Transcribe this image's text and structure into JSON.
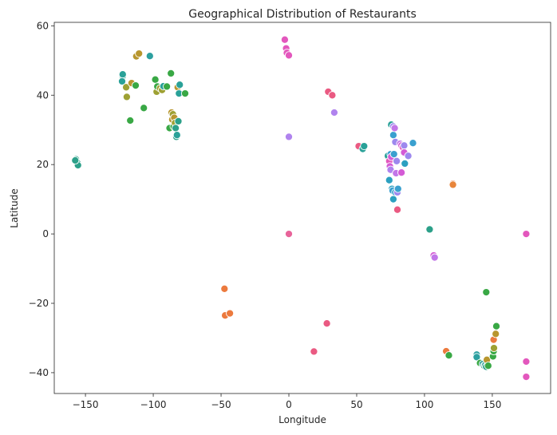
{
  "chart_data": {
    "type": "scatter",
    "title": "Geographical Distribution of Restaurants",
    "xlabel": "Longitude",
    "ylabel": "Latitude",
    "xlim": [
      -173,
      193
    ],
    "ylim": [
      -46,
      61
    ],
    "xticks": [
      -150,
      -100,
      -50,
      0,
      50,
      100,
      150
    ],
    "yticks": [
      -40,
      -20,
      0,
      20,
      40,
      60
    ],
    "xtick_labels": [
      "−150",
      "−100",
      "−50",
      "0",
      "50",
      "100",
      "150"
    ],
    "ytick_labels": [
      "−40",
      "−20",
      "0",
      "20",
      "40",
      "60"
    ],
    "grid": false,
    "legend": "none",
    "marker_edge_color": "#ffffff",
    "points": [
      {
        "x": -157,
        "y": 21.5,
        "color": "#2ca089"
      },
      {
        "x": -156,
        "y": 20.5,
        "color": "#2ca089"
      },
      {
        "x": -155.5,
        "y": 19.8,
        "color": "#2ca089"
      },
      {
        "x": -157.5,
        "y": 21.2,
        "color": "#2ca089"
      },
      {
        "x": -122.5,
        "y": 45.5,
        "color": "#2ca089"
      },
      {
        "x": -122.5,
        "y": 46,
        "color": "#2aa198"
      },
      {
        "x": -123,
        "y": 44,
        "color": "#2aa198"
      },
      {
        "x": -120,
        "y": 42.3,
        "color": "#9ea133"
      },
      {
        "x": -119.5,
        "y": 39.5,
        "color": "#9ea133"
      },
      {
        "x": -117,
        "y": 32.7,
        "color": "#39a845"
      },
      {
        "x": -116,
        "y": 43.5,
        "color": "#b8962e"
      },
      {
        "x": -113,
        "y": 42.8,
        "color": "#39a845"
      },
      {
        "x": -112.5,
        "y": 51.2,
        "color": "#b8962e"
      },
      {
        "x": -110.5,
        "y": 52,
        "color": "#b8962e"
      },
      {
        "x": -107,
        "y": 36.3,
        "color": "#39a845"
      },
      {
        "x": -102.5,
        "y": 51.3,
        "color": "#2ca0a0"
      },
      {
        "x": -98.5,
        "y": 44.5,
        "color": "#39a845"
      },
      {
        "x": -97.5,
        "y": 41,
        "color": "#9ea133"
      },
      {
        "x": -97,
        "y": 42.5,
        "color": "#39a845"
      },
      {
        "x": -95,
        "y": 42,
        "color": "#9ea133"
      },
      {
        "x": -93.5,
        "y": 41.5,
        "color": "#9ea133"
      },
      {
        "x": -92.5,
        "y": 42.6,
        "color": "#2aa198"
      },
      {
        "x": -90,
        "y": 42.5,
        "color": "#39a845"
      },
      {
        "x": -88,
        "y": 30.5,
        "color": "#39a845"
      },
      {
        "x": -87,
        "y": 46.3,
        "color": "#39a845"
      },
      {
        "x": -86.5,
        "y": 35,
        "color": "#b8962e"
      },
      {
        "x": -86,
        "y": 33,
        "color": "#b8962e"
      },
      {
        "x": -85.5,
        "y": 34.5,
        "color": "#9ea133"
      },
      {
        "x": -85,
        "y": 31,
        "color": "#39a845"
      },
      {
        "x": -84.5,
        "y": 33.5,
        "color": "#b8962e"
      },
      {
        "x": -84,
        "y": 32,
        "color": "#9ea133"
      },
      {
        "x": -83.5,
        "y": 30.5,
        "color": "#2ca089"
      },
      {
        "x": -83,
        "y": 28,
        "color": "#2ca089"
      },
      {
        "x": -82.5,
        "y": 28.5,
        "color": "#2aa198"
      },
      {
        "x": -82,
        "y": 42.3,
        "color": "#b8962e"
      },
      {
        "x": -81.5,
        "y": 32.5,
        "color": "#2ca089"
      },
      {
        "x": -81,
        "y": 40.5,
        "color": "#2aa198"
      },
      {
        "x": -80.5,
        "y": 43,
        "color": "#2aa198"
      },
      {
        "x": -76.5,
        "y": 40.5,
        "color": "#39a845"
      },
      {
        "x": -3,
        "y": 56,
        "color": "#e357bd"
      },
      {
        "x": -2,
        "y": 53.5,
        "color": "#e357bd"
      },
      {
        "x": -1.5,
        "y": 52.2,
        "color": "#e357bd"
      },
      {
        "x": 0,
        "y": 51.5,
        "color": "#e357bd"
      },
      {
        "x": 0,
        "y": 28,
        "color": "#b083ee"
      },
      {
        "x": 0,
        "y": 0,
        "color": "#e8649a"
      },
      {
        "x": 29,
        "y": 41,
        "color": "#ea5a82"
      },
      {
        "x": 32,
        "y": 40,
        "color": "#ea5a82"
      },
      {
        "x": 33.5,
        "y": 35,
        "color": "#b083ee"
      },
      {
        "x": 51.5,
        "y": 25.3,
        "color": "#ea5a82"
      },
      {
        "x": 54.5,
        "y": 24.5,
        "color": "#2aa198"
      },
      {
        "x": 55.5,
        "y": 25.3,
        "color": "#2aa198"
      },
      {
        "x": 73,
        "y": 22.5,
        "color": "#2aa198"
      },
      {
        "x": 74,
        "y": 15.5,
        "color": "#2ca0c0"
      },
      {
        "x": 74,
        "y": 21,
        "color": "#e357bd"
      },
      {
        "x": 74.5,
        "y": 19.5,
        "color": "#d45bd6"
      },
      {
        "x": 75,
        "y": 23,
        "color": "#3aa0cf"
      },
      {
        "x": 75,
        "y": 18.5,
        "color": "#b083ee"
      },
      {
        "x": 75.5,
        "y": 22.2,
        "color": "#d45bd6"
      },
      {
        "x": 75.5,
        "y": 31.5,
        "color": "#2aa198"
      },
      {
        "x": 76,
        "y": 13,
        "color": "#2ca0c0"
      },
      {
        "x": 76.5,
        "y": 12.5,
        "color": "#3aa0cf"
      },
      {
        "x": 77,
        "y": 28.5,
        "color": "#3aa0cf"
      },
      {
        "x": 77,
        "y": 10,
        "color": "#2ca0c0"
      },
      {
        "x": 77,
        "y": 31,
        "color": "#9d88ee"
      },
      {
        "x": 77.5,
        "y": 23,
        "color": "#3aa0cf"
      },
      {
        "x": 78,
        "y": 30.5,
        "color": "#c276e8"
      },
      {
        "x": 78.5,
        "y": 26.5,
        "color": "#9d88ee"
      },
      {
        "x": 78.5,
        "y": 12,
        "color": "#3aa0cf"
      },
      {
        "x": 79,
        "y": 17.5,
        "color": "#c276e8"
      },
      {
        "x": 79.5,
        "y": 21,
        "color": "#9d88ee"
      },
      {
        "x": 80,
        "y": 12,
        "color": "#9d88ee"
      },
      {
        "x": 80,
        "y": 7,
        "color": "#ea5a82"
      },
      {
        "x": 80.5,
        "y": 13,
        "color": "#3aa0cf"
      },
      {
        "x": 82,
        "y": 26,
        "color": "#c276e8"
      },
      {
        "x": 83,
        "y": 25.5,
        "color": "#d45bd6"
      },
      {
        "x": 83,
        "y": 17.7,
        "color": "#d45bd6"
      },
      {
        "x": 84,
        "y": 25,
        "color": "#e357bd"
      },
      {
        "x": 85,
        "y": 25.5,
        "color": "#9d88ee"
      },
      {
        "x": 85,
        "y": 23.5,
        "color": "#d45bd6"
      },
      {
        "x": 85.5,
        "y": 20.3,
        "color": "#2ca0c0"
      },
      {
        "x": 88,
        "y": 22.5,
        "color": "#9d88ee"
      },
      {
        "x": 91.5,
        "y": 26.2,
        "color": "#3aa0cf"
      },
      {
        "x": 103.8,
        "y": 1.3,
        "color": "#2ca089"
      },
      {
        "x": 106.8,
        "y": -6.2,
        "color": "#d45bd6"
      },
      {
        "x": 107.5,
        "y": -6.8,
        "color": "#c276e8"
      },
      {
        "x": 121,
        "y": 14.5,
        "color": "#ec7a3e"
      },
      {
        "x": 121,
        "y": 14.2,
        "color": "#e8853b"
      },
      {
        "x": 145.5,
        "y": -16.8,
        "color": "#39a845"
      },
      {
        "x": 175,
        "y": 0,
        "color": "#e357bd"
      },
      {
        "x": 175,
        "y": -36.8,
        "color": "#e357bd"
      },
      {
        "x": 175,
        "y": -41.2,
        "color": "#e357bd"
      },
      {
        "x": -47.5,
        "y": -15.8,
        "color": "#ec7a3e"
      },
      {
        "x": -47,
        "y": -23.5,
        "color": "#ec7a3e"
      },
      {
        "x": -43.5,
        "y": -22.9,
        "color": "#ec7a3e"
      },
      {
        "x": 28,
        "y": -25.8,
        "color": "#ea5a82"
      },
      {
        "x": 18.5,
        "y": -33.9,
        "color": "#ea5a82"
      },
      {
        "x": 116,
        "y": -33.8,
        "color": "#ec7a3e"
      },
      {
        "x": 118,
        "y": -35,
        "color": "#39a845"
      },
      {
        "x": 138.5,
        "y": -34.8,
        "color": "#2ca0a0"
      },
      {
        "x": 138.5,
        "y": -35.5,
        "color": "#2ca0a0"
      },
      {
        "x": 141,
        "y": -37.2,
        "color": "#39a845"
      },
      {
        "x": 143,
        "y": -37.5,
        "color": "#2aa198"
      },
      {
        "x": 144,
        "y": -38,
        "color": "#2ca089"
      },
      {
        "x": 144.8,
        "y": -37.8,
        "color": "#2aa198"
      },
      {
        "x": 145.5,
        "y": -38.3,
        "color": "#2ca089"
      },
      {
        "x": 146,
        "y": -36.3,
        "color": "#b8962e"
      },
      {
        "x": 147,
        "y": -38,
        "color": "#39a845"
      },
      {
        "x": 150.5,
        "y": -35.3,
        "color": "#39a845"
      },
      {
        "x": 151,
        "y": -33.8,
        "color": "#39a845"
      },
      {
        "x": 151.2,
        "y": -32.9,
        "color": "#9ea133"
      },
      {
        "x": 151,
        "y": -30.5,
        "color": "#ec7a3e"
      },
      {
        "x": 152.5,
        "y": -28.8,
        "color": "#b8962e"
      },
      {
        "x": 153,
        "y": -26.6,
        "color": "#39a845"
      }
    ]
  }
}
